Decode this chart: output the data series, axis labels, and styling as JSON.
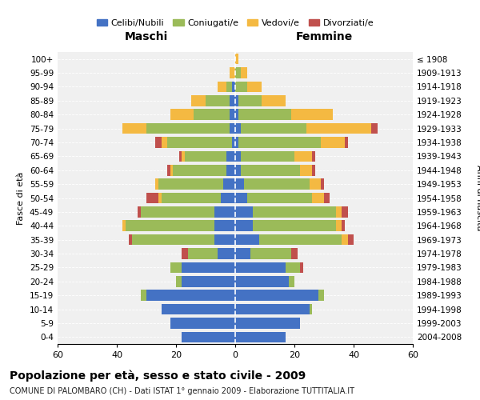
{
  "age_groups": [
    "0-4",
    "5-9",
    "10-14",
    "15-19",
    "20-24",
    "25-29",
    "30-34",
    "35-39",
    "40-44",
    "45-49",
    "50-54",
    "55-59",
    "60-64",
    "65-69",
    "70-74",
    "75-79",
    "80-84",
    "85-89",
    "90-94",
    "95-99",
    "100+"
  ],
  "birth_years": [
    "2004-2008",
    "1999-2003",
    "1994-1998",
    "1989-1993",
    "1984-1988",
    "1979-1983",
    "1974-1978",
    "1969-1973",
    "1964-1968",
    "1959-1963",
    "1954-1958",
    "1949-1953",
    "1944-1948",
    "1939-1943",
    "1934-1938",
    "1929-1933",
    "1924-1928",
    "1919-1923",
    "1914-1918",
    "1909-1913",
    "≤ 1908"
  ],
  "colors": {
    "celibe": "#4472C4",
    "coniugato": "#9BBB59",
    "vedovo": "#F4B942",
    "divorziato": "#C0504D"
  },
  "maschi": {
    "celibe": [
      18,
      22,
      25,
      30,
      18,
      18,
      6,
      7,
      7,
      7,
      5,
      4,
      3,
      3,
      1,
      2,
      2,
      2,
      1,
      0,
      0
    ],
    "coniugato": [
      0,
      0,
      0,
      2,
      2,
      4,
      10,
      28,
      30,
      25,
      20,
      22,
      18,
      14,
      22,
      28,
      12,
      8,
      2,
      0,
      0
    ],
    "vedovo": [
      0,
      0,
      0,
      0,
      0,
      0,
      0,
      0,
      1,
      0,
      1,
      1,
      1,
      1,
      2,
      8,
      8,
      5,
      3,
      2,
      0
    ],
    "divorziato": [
      0,
      0,
      0,
      0,
      0,
      0,
      2,
      1,
      0,
      1,
      4,
      0,
      1,
      1,
      2,
      0,
      0,
      0,
      0,
      0,
      0
    ]
  },
  "femmine": {
    "nubile": [
      17,
      22,
      25,
      28,
      18,
      17,
      5,
      8,
      6,
      6,
      4,
      3,
      2,
      2,
      1,
      2,
      1,
      1,
      0,
      0,
      0
    ],
    "coniugata": [
      0,
      0,
      1,
      2,
      2,
      5,
      14,
      28,
      28,
      28,
      22,
      22,
      20,
      18,
      28,
      22,
      18,
      8,
      4,
      2,
      0
    ],
    "vedova": [
      0,
      0,
      0,
      0,
      0,
      0,
      0,
      2,
      2,
      2,
      4,
      4,
      4,
      6,
      8,
      22,
      14,
      8,
      5,
      2,
      1
    ],
    "divorziata": [
      0,
      0,
      0,
      0,
      0,
      1,
      2,
      2,
      1,
      2,
      2,
      1,
      1,
      1,
      1,
      2,
      0,
      0,
      0,
      0,
      0
    ]
  },
  "xlim": 60,
  "title": "Popolazione per età, sesso e stato civile - 2009",
  "subtitle": "COMUNE DI PALOMBARO (CH) - Dati ISTAT 1° gennaio 2009 - Elaborazione TUTTITALIA.IT",
  "xlabel_maschi": "Maschi",
  "xlabel_femmine": "Femmine",
  "ylabel": "Fasce di età",
  "ylabel_right": "Anni di nascita",
  "legend_labels": [
    "Celibi/Nubili",
    "Coniugati/e",
    "Vedovi/e",
    "Divorziati/e"
  ],
  "background_color": "#f0f0f0"
}
